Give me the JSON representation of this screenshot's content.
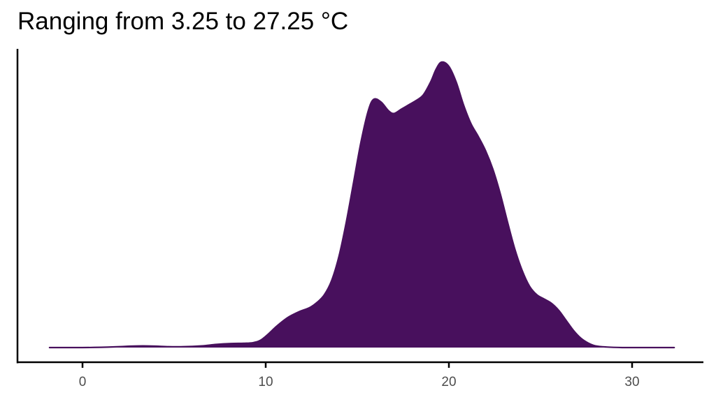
{
  "chart_data": {
    "type": "area",
    "subtype": "density",
    "title": "Ranging from 3.25 to 27.25 °C",
    "xlabel": "",
    "ylabel": "",
    "xlim": [
      -3.4,
      33.8
    ],
    "ylim": [
      0,
      1
    ],
    "x_ticks": [
      0,
      10,
      20,
      30
    ],
    "x_tick_labels": [
      "0",
      "10",
      "20",
      "30"
    ],
    "y_axis_ticks_shown": false,
    "grid": false,
    "legend": "none",
    "fill_color": "#48105D",
    "line_color": "#48105D",
    "axis_color": "#000000",
    "tick_label_color": "#4d4d4d",
    "series": [
      {
        "x": [
          -1.8,
          0,
          1,
          2,
          2.6,
          3.3,
          4,
          4.7,
          5.5,
          6.5,
          7.3,
          8.1,
          8.8,
          9.3,
          9.7,
          10.1,
          10.6,
          11.2,
          11.8,
          12.4,
          12.8,
          13.2,
          13.6,
          14.0,
          14.4,
          14.8,
          15.2,
          15.6,
          15.9,
          16.3,
          16.7,
          17.0,
          17.4,
          17.8,
          18.2,
          18.6,
          19.0,
          19.3,
          19.6,
          20.0,
          20.4,
          20.8,
          21.2,
          21.6,
          22.0,
          22.4,
          22.8,
          23.2,
          23.6,
          24.0,
          24.4,
          24.8,
          25.2,
          25.6,
          26.0,
          26.4,
          26.8,
          27.2,
          27.6,
          28.0,
          28.6,
          29.5,
          30.5,
          31.5,
          32.3
        ],
        "y": [
          0.0,
          0.0,
          0.001,
          0.003,
          0.005,
          0.006,
          0.005,
          0.003,
          0.003,
          0.006,
          0.011,
          0.014,
          0.015,
          0.017,
          0.025,
          0.045,
          0.075,
          0.105,
          0.125,
          0.14,
          0.158,
          0.185,
          0.235,
          0.32,
          0.44,
          0.58,
          0.72,
          0.83,
          0.87,
          0.86,
          0.83,
          0.82,
          0.835,
          0.85,
          0.865,
          0.885,
          0.93,
          0.975,
          1.0,
          0.985,
          0.93,
          0.85,
          0.785,
          0.74,
          0.69,
          0.625,
          0.54,
          0.44,
          0.345,
          0.27,
          0.215,
          0.185,
          0.17,
          0.155,
          0.13,
          0.095,
          0.06,
          0.033,
          0.016,
          0.006,
          0.002,
          0.0,
          0.0,
          0.0,
          0.0
        ]
      }
    ]
  }
}
